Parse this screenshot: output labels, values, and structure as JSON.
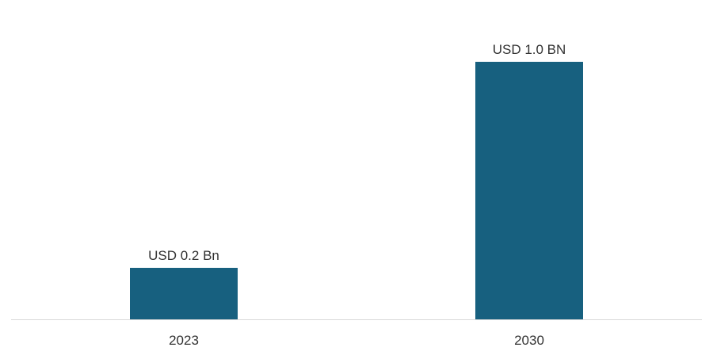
{
  "chart_data": {
    "type": "bar",
    "categories": [
      "2023",
      "2030"
    ],
    "values": [
      0.2,
      1.0
    ],
    "data_labels": [
      "USD 0.2 Bn",
      "USD 1.0 BN"
    ],
    "title": "",
    "xlabel": "",
    "ylabel": "",
    "ylim": [
      0,
      1.0
    ],
    "grid": false,
    "legend": "none",
    "bar_color": "#17607f",
    "axis_color": "#d9d9d9"
  }
}
